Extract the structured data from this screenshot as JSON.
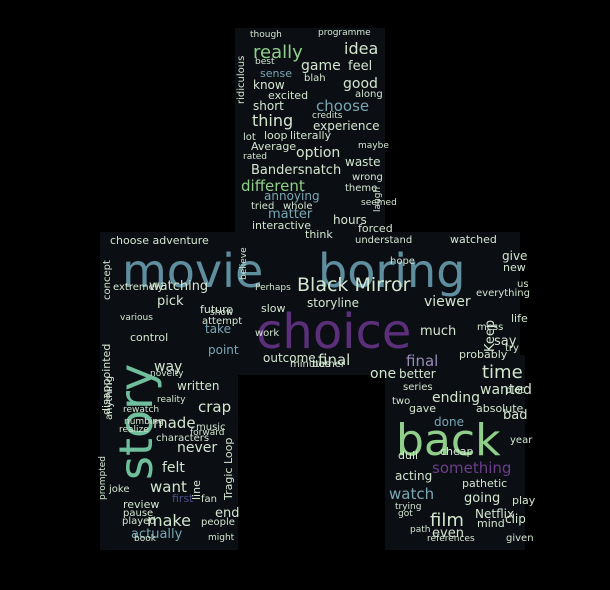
{
  "colors": {
    "background": "#000000",
    "shape_fill": "#0b0f14",
    "palette": [
      "#6fbf9c",
      "#5f8f9f",
      "#4b4f8a",
      "#6b3d8a",
      "#8fcf8a",
      "#d3e6d0",
      "#7aa6b3",
      "#9a8bb8"
    ]
  },
  "words": [
    {
      "text": "movie",
      "color": "#5f8f9f"
    },
    {
      "text": "boring",
      "color": "#5f8f9f"
    },
    {
      "text": "choice",
      "color": "#5b2f7a"
    },
    {
      "text": "story",
      "color": "#6fbf9c"
    },
    {
      "text": "back",
      "color": "#8fcf8a"
    },
    {
      "text": "Black Mirror",
      "color": "#d3e6d0"
    },
    {
      "text": "really",
      "color": "#8fcf8a"
    },
    {
      "text": "idea",
      "color": "#d3e6d0"
    },
    {
      "text": "game",
      "color": "#d3e6d0"
    },
    {
      "text": "feel",
      "color": "#d3e6d0"
    },
    {
      "text": "good",
      "color": "#d3e6d0"
    },
    {
      "text": "know",
      "color": "#d3e6d0"
    },
    {
      "text": "choose",
      "color": "#7aa6b3"
    },
    {
      "text": "thing",
      "color": "#d3e6d0"
    },
    {
      "text": "experience",
      "color": "#d3e6d0"
    },
    {
      "text": "option",
      "color": "#d3e6d0"
    },
    {
      "text": "Bandersnatch",
      "color": "#d3e6d0"
    },
    {
      "text": "different",
      "color": "#8fcf8a"
    },
    {
      "text": "waste",
      "color": "#d3e6d0"
    },
    {
      "text": "matter",
      "color": "#7aa6b3"
    },
    {
      "text": "hours",
      "color": "#d3e6d0"
    },
    {
      "text": "interactive",
      "color": "#d3e6d0"
    },
    {
      "text": "choose adventure",
      "color": "#d3e6d0"
    },
    {
      "text": "watching",
      "color": "#d3e6d0"
    },
    {
      "text": "time",
      "color": "#d3e6d0"
    },
    {
      "text": "pick",
      "color": "#d3e6d0"
    },
    {
      "text": "storyline",
      "color": "#d3e6d0"
    },
    {
      "text": "viewer",
      "color": "#d3e6d0"
    },
    {
      "text": "Keep",
      "color": "#d3e6d0"
    },
    {
      "text": "final",
      "color": "#d3e6d0"
    },
    {
      "text": "final",
      "color": "#9a8bb8"
    },
    {
      "text": "one",
      "color": "#d3e6d0"
    },
    {
      "text": "better",
      "color": "#d3e6d0"
    },
    {
      "text": "ending",
      "color": "#d3e6d0"
    },
    {
      "text": "wanted",
      "color": "#d3e6d0"
    },
    {
      "text": "way",
      "color": "#d3e6d0"
    },
    {
      "text": "written",
      "color": "#d3e6d0"
    },
    {
      "text": "crap",
      "color": "#d3e6d0"
    },
    {
      "text": "made",
      "color": "#d3e6d0"
    },
    {
      "text": "never",
      "color": "#d3e6d0"
    },
    {
      "text": "felt",
      "color": "#d3e6d0"
    },
    {
      "text": "want",
      "color": "#d3e6d0"
    },
    {
      "text": "make",
      "color": "#d3e6d0"
    },
    {
      "text": "end",
      "color": "#d3e6d0"
    },
    {
      "text": "actually",
      "color": "#7aa6b3"
    },
    {
      "text": "something",
      "color": "#6b3d8a"
    },
    {
      "text": "watch",
      "color": "#7aa6b3"
    },
    {
      "text": "film",
      "color": "#d3e6d0"
    },
    {
      "text": "going",
      "color": "#d3e6d0"
    },
    {
      "text": "even",
      "color": "#d3e6d0"
    },
    {
      "text": "Netflix",
      "color": "#d3e6d0"
    },
    {
      "text": "done",
      "color": "#7aa6b3"
    },
    {
      "text": "bad",
      "color": "#d3e6d0"
    },
    {
      "text": "much",
      "color": "#d3e6d0"
    },
    {
      "text": "say",
      "color": "#d3e6d0"
    },
    {
      "text": "give",
      "color": "#d3e6d0"
    },
    {
      "text": "short",
      "color": "#d3e6d0"
    },
    {
      "text": "sense",
      "color": "#7aa6b3"
    },
    {
      "text": "annoying",
      "color": "#7aa6b3"
    },
    {
      "text": "outcome",
      "color": "#d3e6d0"
    },
    {
      "text": "take",
      "color": "#7aa6b3"
    },
    {
      "text": "point",
      "color": "#7aa6b3"
    },
    {
      "text": "future",
      "color": "#d3e6d0"
    },
    {
      "text": "slow",
      "color": "#d3e6d0"
    },
    {
      "text": "work",
      "color": "#d3e6d0"
    },
    {
      "text": "characters",
      "color": "#d3e6d0"
    },
    {
      "text": "music",
      "color": "#d3e6d0"
    },
    {
      "text": "review",
      "color": "#d3e6d0"
    },
    {
      "text": "joke",
      "color": "#d3e6d0"
    },
    {
      "text": "played",
      "color": "#d3e6d0"
    },
    {
      "text": "pause",
      "color": "#d3e6d0"
    },
    {
      "text": "book",
      "color": "#d3e6d0"
    },
    {
      "text": "first",
      "color": "#4b4f8a"
    },
    {
      "text": "fan",
      "color": "#d3e6d0"
    },
    {
      "text": "people",
      "color": "#d3e6d0"
    },
    {
      "text": "might",
      "color": "#d3e6d0"
    },
    {
      "text": "control",
      "color": "#d3e6d0"
    },
    {
      "text": "extremely",
      "color": "#d3e6d0"
    },
    {
      "text": "attempt",
      "color": "#d3e6d0"
    },
    {
      "text": "show",
      "color": "#d3e6d0"
    },
    {
      "text": "concept",
      "color": "#d3e6d0"
    },
    {
      "text": "disappointed",
      "color": "#d3e6d0"
    },
    {
      "text": "anything",
      "color": "#d3e6d0"
    },
    {
      "text": "mind",
      "color": "#d3e6d0"
    },
    {
      "text": "given",
      "color": "#d3e6d0"
    },
    {
      "text": "clip",
      "color": "#d3e6d0"
    },
    {
      "text": "play",
      "color": "#d3e6d0"
    },
    {
      "text": "pathetic",
      "color": "#d3e6d0"
    },
    {
      "text": "dull",
      "color": "#d3e6d0"
    },
    {
      "text": "acting",
      "color": "#d3e6d0"
    },
    {
      "text": "year",
      "color": "#d3e6d0"
    },
    {
      "text": "cheap",
      "color": "#d3e6d0"
    },
    {
      "text": "gave",
      "color": "#d3e6d0"
    },
    {
      "text": "two",
      "color": "#d3e6d0"
    },
    {
      "text": "series",
      "color": "#d3e6d0"
    },
    {
      "text": "probably",
      "color": "#d3e6d0"
    },
    {
      "text": "absolute",
      "color": "#d3e6d0"
    },
    {
      "text": "mess",
      "color": "#d3e6d0"
    },
    {
      "text": "life",
      "color": "#d3e6d0"
    },
    {
      "text": "everything",
      "color": "#d3e6d0"
    },
    {
      "text": "new",
      "color": "#d3e6d0"
    },
    {
      "text": "watched",
      "color": "#d3e6d0"
    },
    {
      "text": "hope",
      "color": "#d3e6d0"
    },
    {
      "text": "understand",
      "color": "#d3e6d0"
    },
    {
      "text": "think",
      "color": "#d3e6d0"
    },
    {
      "text": "forced",
      "color": "#d3e6d0"
    },
    {
      "text": "tried",
      "color": "#d3e6d0"
    },
    {
      "text": "whole",
      "color": "#d3e6d0"
    },
    {
      "text": "theme",
      "color": "#d3e6d0"
    },
    {
      "text": "wrong",
      "color": "#d3e6d0"
    },
    {
      "text": "maybe",
      "color": "#d3e6d0"
    },
    {
      "text": "Average",
      "color": "#d3e6d0"
    },
    {
      "text": "loop",
      "color": "#d3e6d0"
    },
    {
      "text": "literally",
      "color": "#d3e6d0"
    },
    {
      "text": "lot",
      "color": "#d3e6d0"
    },
    {
      "text": "rated",
      "color": "#d3e6d0"
    },
    {
      "text": "excited",
      "color": "#d3e6d0"
    },
    {
      "text": "blah",
      "color": "#d3e6d0"
    },
    {
      "text": "best",
      "color": "#d3e6d0"
    },
    {
      "text": "though",
      "color": "#d3e6d0"
    },
    {
      "text": "programme",
      "color": "#d3e6d0"
    },
    {
      "text": "ridiculous",
      "color": "#d3e6d0"
    },
    {
      "text": "along",
      "color": "#d3e6d0"
    },
    {
      "text": "credits",
      "color": "#d3e6d0"
    },
    {
      "text": "minutes",
      "color": "#d3e6d0"
    },
    {
      "text": "bother",
      "color": "#d3e6d0"
    },
    {
      "text": "Tragic Loop",
      "color": "#d3e6d0"
    },
    {
      "text": "line",
      "color": "#d3e6d0"
    },
    {
      "text": "rewatch",
      "color": "#d3e6d0"
    },
    {
      "text": "reality",
      "color": "#d3e6d0"
    },
    {
      "text": "novelty",
      "color": "#d3e6d0"
    },
    {
      "text": "forward",
      "color": "#d3e6d0"
    },
    {
      "text": "realize",
      "color": "#d3e6d0"
    },
    {
      "text": "numbing",
      "color": "#d3e6d0"
    },
    {
      "text": "prompted",
      "color": "#d3e6d0"
    },
    {
      "text": "various",
      "color": "#d3e6d0"
    },
    {
      "text": "references",
      "color": "#d3e6d0"
    },
    {
      "text": "got",
      "color": "#d3e6d0"
    },
    {
      "text": "trying",
      "color": "#d3e6d0"
    },
    {
      "text": "path",
      "color": "#d3e6d0"
    },
    {
      "text": "believe",
      "color": "#d3e6d0"
    },
    {
      "text": "Perhaps",
      "color": "#d3e6d0"
    },
    {
      "text": "seemed",
      "color": "#d3e6d0"
    },
    {
      "text": "laugh",
      "color": "#d3e6d0"
    },
    {
      "text": "us",
      "color": "#d3e6d0"
    },
    {
      "text": "try",
      "color": "#d3e6d0"
    },
    {
      "text": "plot",
      "color": "#d3e6d0"
    }
  ]
}
